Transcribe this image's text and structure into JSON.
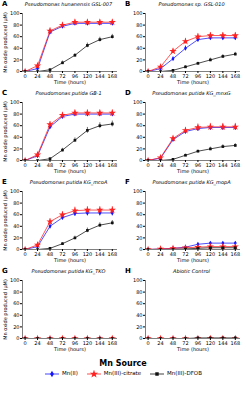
{
  "chart_data": [
    {
      "type": "line",
      "title": "Pseudomonas hunanensis GSL-007",
      "annotations": [
        "A"
      ],
      "xlabel": "Time (hours)",
      "ylabel": "Mn oxide produced (μM)",
      "x": [
        0,
        24,
        48,
        72,
        96,
        120,
        144,
        168
      ],
      "xlim": [
        -5,
        178
      ],
      "xticks": [
        0,
        24,
        48,
        72,
        96,
        120,
        144,
        168
      ],
      "ylim": [
        0,
        100
      ],
      "yticks": [
        0,
        20,
        40,
        60,
        80,
        100
      ],
      "grid": false,
      "series": [
        {
          "name": "Mn(II)",
          "color": "#1414FF",
          "marker": "diamond",
          "values": [
            0,
            5,
            68,
            78,
            83,
            83,
            83,
            83
          ],
          "errors": [
            0,
            3,
            4,
            3,
            3,
            3,
            3,
            3
          ]
        },
        {
          "name": "Mn(III)-citrate",
          "color": "#FF2020",
          "marker": "star",
          "values": [
            0,
            10,
            70,
            80,
            85,
            85,
            85,
            85
          ],
          "errors": [
            0,
            4,
            5,
            4,
            4,
            4,
            4,
            4
          ]
        },
        {
          "name": "Mn(III)-DFOB",
          "color": "#111111",
          "marker": "square",
          "values": [
            0,
            0,
            3,
            15,
            28,
            45,
            55,
            60
          ],
          "errors": [
            0,
            0,
            2,
            3,
            3,
            4,
            4,
            4
          ]
        }
      ]
    },
    {
      "type": "line",
      "title": "Pseudomonas sp. GSL-010",
      "annotations": [
        "B"
      ],
      "xlabel": "Time (hours)",
      "x": [
        0,
        24,
        48,
        72,
        96,
        120,
        144,
        168
      ],
      "xlim": [
        -5,
        178
      ],
      "xticks": [
        0,
        24,
        48,
        72,
        96,
        120,
        144,
        168
      ],
      "ylim": [
        0,
        100
      ],
      "yticks": [
        0,
        20,
        40,
        60,
        80,
        100
      ],
      "grid": false,
      "series": [
        {
          "name": "Mn(II)",
          "color": "#1414FF",
          "marker": "diamond",
          "values": [
            0,
            5,
            22,
            40,
            55,
            58,
            58,
            58
          ],
          "errors": [
            0,
            2,
            3,
            4,
            4,
            4,
            4,
            4
          ]
        },
        {
          "name": "Mn(III)-citrate",
          "color": "#FF2020",
          "marker": "star",
          "values": [
            0,
            8,
            35,
            52,
            60,
            62,
            62,
            62
          ],
          "errors": [
            0,
            3,
            4,
            5,
            5,
            5,
            5,
            5
          ]
        },
        {
          "name": "Mn(III)-DFOB",
          "color": "#111111",
          "marker": "square",
          "values": [
            0,
            0,
            2,
            8,
            14,
            20,
            26,
            30
          ],
          "errors": [
            0,
            0,
            1,
            2,
            2,
            3,
            3,
            3
          ]
        }
      ]
    },
    {
      "type": "line",
      "title": "Pseudomonas putida GB-1",
      "annotations": [
        "C"
      ],
      "xlabel": "Time (hours)",
      "ylabel": "Mn oxide produced (μM)",
      "x": [
        0,
        24,
        48,
        72,
        96,
        120,
        144,
        168
      ],
      "xlim": [
        -5,
        178
      ],
      "xticks": [
        0,
        24,
        48,
        72,
        96,
        120,
        144,
        168
      ],
      "ylim": [
        0,
        100
      ],
      "yticks": [
        0,
        20,
        40,
        60,
        80,
        100
      ],
      "grid": false,
      "series": [
        {
          "name": "Mn(II)",
          "color": "#1414FF",
          "marker": "diamond",
          "values": [
            0,
            8,
            58,
            76,
            80,
            80,
            80,
            80
          ],
          "errors": [
            0,
            2,
            4,
            4,
            4,
            4,
            4,
            4
          ]
        },
        {
          "name": "Mn(III)-citrate",
          "color": "#FF2020",
          "marker": "star",
          "values": [
            0,
            10,
            62,
            78,
            82,
            82,
            82,
            82
          ],
          "errors": [
            0,
            3,
            5,
            5,
            5,
            5,
            5,
            5
          ]
        },
        {
          "name": "Mn(III)-DFOB",
          "color": "#111111",
          "marker": "square",
          "values": [
            0,
            0,
            3,
            18,
            35,
            52,
            60,
            63
          ],
          "errors": [
            0,
            0,
            2,
            3,
            4,
            5,
            5,
            5
          ]
        }
      ]
    },
    {
      "type": "line",
      "title": "Pseudomonas putida KG_mnxG",
      "annotations": [
        "D"
      ],
      "xlabel": "Time (hours)",
      "x": [
        0,
        24,
        48,
        72,
        96,
        120,
        144,
        168
      ],
      "xlim": [
        -5,
        178
      ],
      "xticks": [
        0,
        24,
        48,
        72,
        96,
        120,
        144,
        168
      ],
      "ylim": [
        0,
        100
      ],
      "yticks": [
        0,
        20,
        40,
        60,
        80,
        100
      ],
      "grid": false,
      "series": [
        {
          "name": "Mn(II)",
          "color": "#1414FF",
          "marker": "diamond",
          "values": [
            0,
            4,
            36,
            50,
            55,
            57,
            57,
            57
          ],
          "errors": [
            0,
            2,
            3,
            4,
            5,
            5,
            5,
            5
          ]
        },
        {
          "name": "Mn(III)-citrate",
          "color": "#FF2020",
          "marker": "star",
          "values": [
            0,
            5,
            38,
            52,
            57,
            58,
            58,
            58
          ],
          "errors": [
            0,
            2,
            4,
            5,
            6,
            6,
            6,
            6
          ]
        },
        {
          "name": "Mn(III)-DFOB",
          "color": "#111111",
          "marker": "square",
          "values": [
            0,
            0,
            2,
            9,
            16,
            20,
            24,
            26
          ],
          "errors": [
            0,
            0,
            1,
            2,
            2,
            3,
            3,
            3
          ]
        }
      ]
    },
    {
      "type": "line",
      "title": "Pseudomonas putida KG_mcoA",
      "annotations": [
        "E"
      ],
      "xlabel": "Time (hours)",
      "ylabel": "Mn oxide produced (μM)",
      "x": [
        0,
        24,
        48,
        72,
        96,
        120,
        144,
        168
      ],
      "xlim": [
        -5,
        178
      ],
      "xticks": [
        0,
        24,
        48,
        72,
        96,
        120,
        144,
        168
      ],
      "ylim": [
        0,
        100
      ],
      "yticks": [
        0,
        20,
        40,
        60,
        80,
        100
      ],
      "grid": false,
      "series": [
        {
          "name": "Mn(II)",
          "color": "#1414FF",
          "marker": "diamond",
          "values": [
            0,
            5,
            40,
            55,
            62,
            63,
            63,
            63
          ],
          "errors": [
            0,
            2,
            4,
            4,
            5,
            5,
            5,
            5
          ]
        },
        {
          "name": "Mn(III)-citrate",
          "color": "#FF2020",
          "marker": "star",
          "values": [
            0,
            8,
            48,
            60,
            67,
            68,
            68,
            68
          ],
          "errors": [
            0,
            3,
            5,
            5,
            6,
            6,
            6,
            6
          ]
        },
        {
          "name": "Mn(III)-DFOB",
          "color": "#111111",
          "marker": "square",
          "values": [
            0,
            0,
            2,
            10,
            20,
            33,
            42,
            46
          ],
          "errors": [
            0,
            0,
            1,
            2,
            3,
            4,
            4,
            4
          ]
        }
      ]
    },
    {
      "type": "line",
      "title": "Pseudomonas putida KG_mopA",
      "annotations": [
        "F"
      ],
      "xlabel": "Time (hours)",
      "x": [
        0,
        24,
        48,
        72,
        96,
        120,
        144,
        168
      ],
      "xlim": [
        -5,
        178
      ],
      "xticks": [
        0,
        24,
        48,
        72,
        96,
        120,
        144,
        168
      ],
      "ylim": [
        0,
        100
      ],
      "yticks": [
        0,
        20,
        40,
        60,
        80,
        100
      ],
      "grid": false,
      "series": [
        {
          "name": "Mn(II)",
          "color": "#1414FF",
          "marker": "diamond",
          "values": [
            0,
            1,
            2,
            4,
            9,
            11,
            11,
            11
          ],
          "errors": [
            0,
            1,
            1,
            2,
            2,
            2,
            2,
            2
          ]
        },
        {
          "name": "Mn(III)-citrate",
          "color": "#FF2020",
          "marker": "star",
          "values": [
            0,
            1,
            2,
            3,
            4,
            5,
            5,
            5
          ],
          "errors": [
            0,
            1,
            1,
            1,
            1,
            1,
            1,
            1
          ]
        },
        {
          "name": "Mn(III)-DFOB",
          "color": "#111111",
          "marker": "square",
          "values": [
            0,
            0,
            0,
            1,
            2,
            3,
            3,
            3
          ],
          "errors": [
            0,
            0,
            0,
            1,
            1,
            1,
            1,
            1
          ]
        }
      ]
    },
    {
      "type": "line",
      "title": "Pseudomonas putida KG_TKO",
      "annotations": [
        "G"
      ],
      "xlabel": "Time (hours)",
      "ylabel": "Mn oxide produced (μM)",
      "x": [
        0,
        24,
        48,
        72,
        96,
        120,
        144,
        168
      ],
      "xlim": [
        -5,
        178
      ],
      "xticks": [
        0,
        24,
        48,
        72,
        96,
        120,
        144,
        168
      ],
      "ylim": [
        0,
        100
      ],
      "yticks": [
        0,
        20,
        40,
        60,
        80,
        100
      ],
      "grid": false,
      "series": [
        {
          "name": "Mn(II)",
          "color": "#1414FF",
          "marker": "diamond",
          "values": [
            0,
            0,
            0,
            0,
            0,
            0,
            0,
            0
          ],
          "errors": [
            0,
            0,
            0,
            0,
            0,
            0,
            0,
            0
          ]
        },
        {
          "name": "Mn(III)-citrate",
          "color": "#FF2020",
          "marker": "star",
          "values": [
            0,
            0,
            0,
            0,
            0,
            0,
            0,
            0
          ],
          "errors": [
            0,
            0,
            0,
            0,
            0,
            0,
            0,
            0
          ]
        },
        {
          "name": "Mn(III)-DFOB",
          "color": "#111111",
          "marker": "square",
          "values": [
            0,
            0,
            0,
            0,
            0,
            0,
            0,
            0
          ],
          "errors": [
            0,
            0,
            0,
            0,
            0,
            0,
            0,
            0
          ]
        }
      ]
    },
    {
      "type": "line",
      "title": "Abiotic Control",
      "annotations": [
        "H"
      ],
      "xlabel": "Time (hours)",
      "x": [
        0,
        24,
        48,
        72,
        96,
        120,
        144,
        168
      ],
      "xlim": [
        -5,
        178
      ],
      "xticks": [
        0,
        24,
        48,
        72,
        96,
        120,
        144,
        168
      ],
      "ylim": [
        0,
        100
      ],
      "yticks": [
        0,
        20,
        40,
        60,
        80,
        100
      ],
      "grid": false,
      "series": [
        {
          "name": "Mn(II)",
          "color": "#1414FF",
          "marker": "diamond",
          "values": [
            0,
            0,
            0,
            0,
            0,
            0,
            0,
            0
          ],
          "errors": [
            0,
            0,
            0,
            0,
            0,
            0,
            0,
            0
          ]
        },
        {
          "name": "Mn(III)-citrate",
          "color": "#FF2020",
          "marker": "star",
          "values": [
            0,
            0,
            0,
            0,
            0,
            0,
            0,
            0
          ],
          "errors": [
            0,
            0,
            0,
            0,
            0,
            0,
            0,
            0
          ]
        },
        {
          "name": "Mn(III)-DFOB",
          "color": "#111111",
          "marker": "square",
          "values": [
            0,
            0,
            0,
            0,
            1,
            1,
            1,
            1
          ],
          "errors": [
            0,
            0,
            0,
            0,
            0,
            0,
            0,
            0
          ]
        }
      ]
    }
  ],
  "legend": "bottom",
  "legend_title": "Mn Source"
}
